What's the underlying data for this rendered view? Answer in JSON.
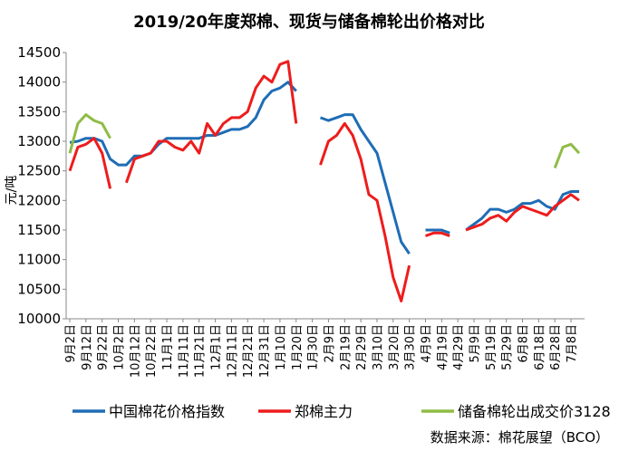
{
  "chart_data": {
    "type": "line",
    "title": "2019/20年度郑棉、现货与储备棉轮出价格对比",
    "y_label": "元/吨",
    "source": "数据来源：棉花展望（BCO）",
    "categories": [
      "9月2日",
      null,
      "9月12日",
      null,
      "9月22日",
      null,
      "10月2日",
      null,
      "10月12日",
      null,
      "10月22日",
      null,
      "11月1日",
      null,
      "11月11日",
      null,
      "11月21日",
      null,
      "12月1日",
      null,
      "12月11日",
      null,
      "12月21日",
      null,
      "12月31日",
      null,
      "1月10日",
      null,
      "1月20日",
      null,
      "1月30日",
      null,
      "2月9日",
      null,
      "2月19日",
      null,
      "2月29日",
      null,
      "3月10日",
      null,
      "3月20日",
      null,
      "3月30日",
      null,
      "4月9日",
      null,
      "4月19日",
      null,
      "4月29日",
      null,
      "5月9日",
      null,
      "5月19日",
      null,
      "5月29日",
      null,
      "6月8日",
      null,
      "6月18日",
      null,
      "6月28日",
      null,
      "7月8日",
      null
    ],
    "series": [
      {
        "name": "中国棉花价格指数",
        "color": "#1f6db5",
        "values": [
          12980,
          13000,
          13050,
          13050,
          13000,
          12700,
          12600,
          12600,
          12750,
          12750,
          12800,
          12950,
          13050,
          13050,
          13050,
          13050,
          13050,
          13100,
          13100,
          13150,
          13200,
          13200,
          13250,
          13400,
          13700,
          13850,
          13900,
          14000,
          13850,
          null,
          null,
          13400,
          13350,
          13400,
          13450,
          13450,
          13200,
          13000,
          12800,
          12300,
          11800,
          11300,
          11100,
          null,
          11500,
          11500,
          11500,
          11450,
          null,
          11500,
          11600,
          11700,
          11850,
          11850,
          11800,
          11850,
          11950,
          11950,
          12000,
          11900,
          11850,
          12100,
          12150,
          12150
        ]
      },
      {
        "name": "郑棉主力",
        "color": "#ee1c1c",
        "values": [
          12500,
          12900,
          12950,
          13050,
          12800,
          12200,
          null,
          12300,
          12700,
          12750,
          12800,
          13000,
          13000,
          12900,
          12850,
          13000,
          12800,
          13300,
          13100,
          13300,
          13400,
          13400,
          13500,
          13900,
          14100,
          14000,
          14300,
          14350,
          13300,
          null,
          null,
          12600,
          13000,
          13100,
          13300,
          13100,
          12700,
          12100,
          12000,
          11400,
          10700,
          10300,
          10900,
          null,
          11400,
          11450,
          11450,
          11400,
          null,
          11500,
          11550,
          11600,
          11700,
          11750,
          11650,
          11800,
          11900,
          11850,
          11800,
          11750,
          11900,
          12000,
          12100,
          12000
        ]
      },
      {
        "name": "储备棉轮出成交价3128",
        "color": "#8fbc45",
        "values": [
          12800,
          13300,
          13450,
          13350,
          13300,
          13050,
          null,
          null,
          null,
          null,
          null,
          null,
          null,
          null,
          null,
          null,
          null,
          null,
          null,
          null,
          null,
          null,
          null,
          null,
          null,
          null,
          null,
          null,
          null,
          null,
          null,
          null,
          null,
          null,
          null,
          null,
          null,
          null,
          null,
          null,
          null,
          null,
          null,
          null,
          null,
          null,
          null,
          null,
          null,
          null,
          null,
          null,
          null,
          null,
          null,
          null,
          null,
          null,
          null,
          null,
          12550,
          12900,
          12950,
          12800
        ]
      }
    ],
    "ylim": [
      10000,
      14500
    ],
    "yticks": [
      10000,
      10500,
      11000,
      11500,
      12000,
      12500,
      13000,
      13500,
      14000,
      14500
    ]
  }
}
